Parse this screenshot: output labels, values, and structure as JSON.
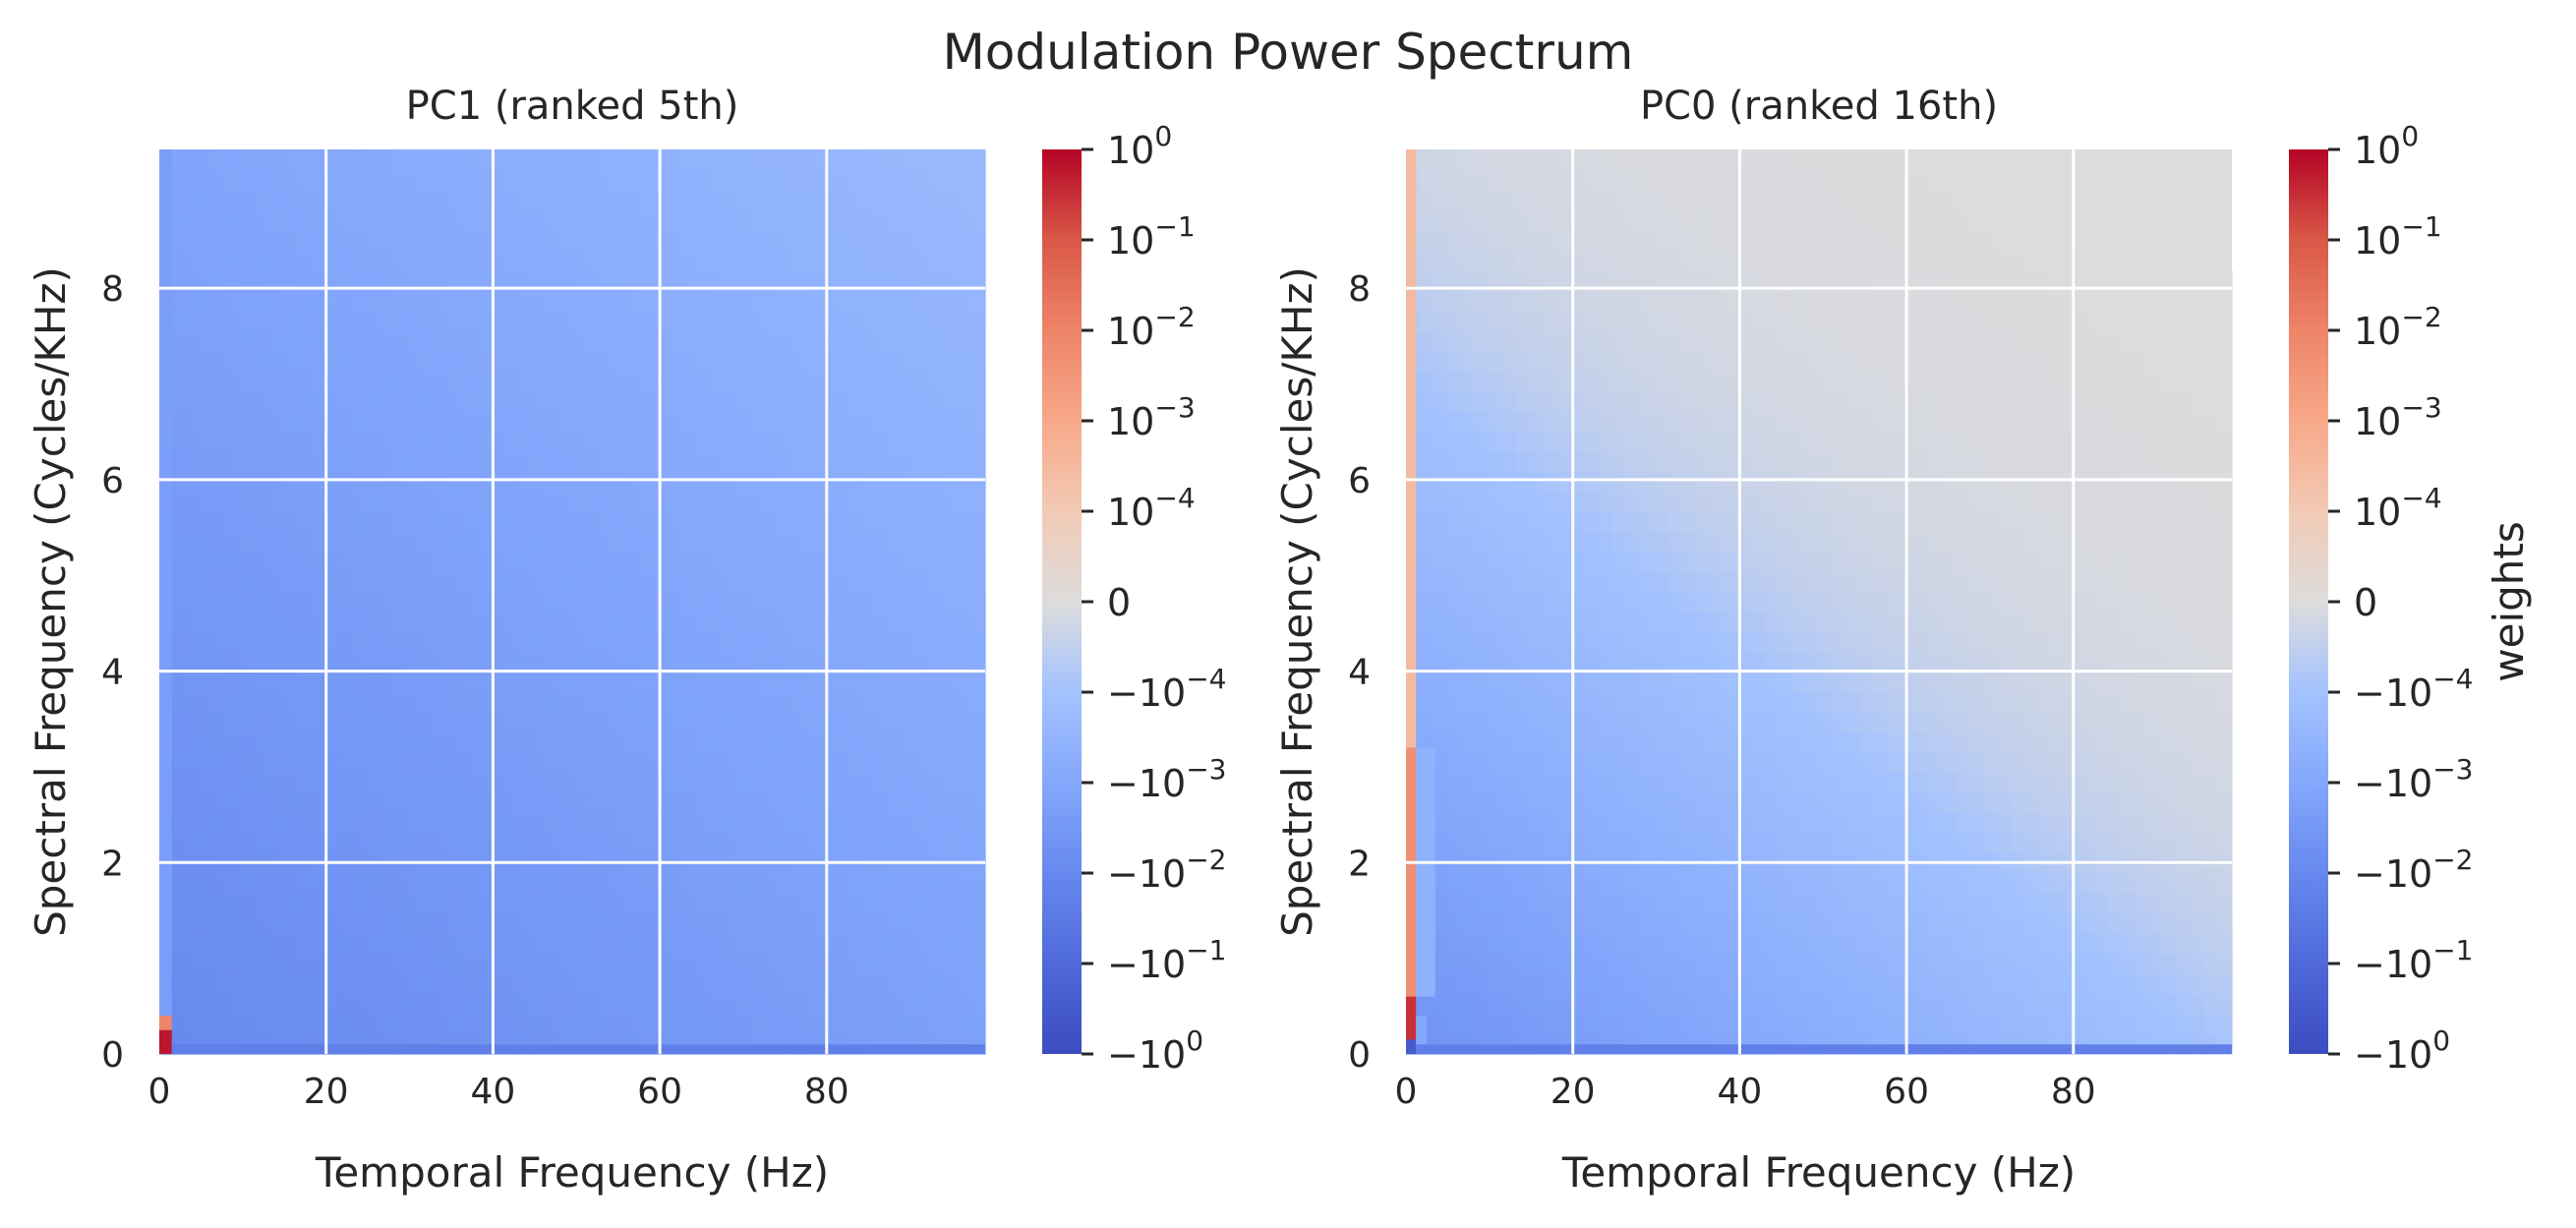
{
  "chart_data": {
    "suptitle": "Modulation Power Spectrum",
    "panels": [
      {
        "type": "heatmap",
        "title": "PC1 (ranked 5th)",
        "xlabel": "Temporal Frequency (Hz)",
        "ylabel": "Spectral Frequency (Cycles/KHz)",
        "xlim": [
          0,
          99
        ],
        "ylim": [
          0,
          9.45
        ],
        "xticks": [
          0,
          20,
          40,
          60,
          80
        ],
        "yticks": [
          0,
          2,
          4,
          6,
          8
        ],
        "grid": true,
        "cells": [
          {
            "x": [
              0,
              1.5
            ],
            "y": [
              0,
              0.25
            ],
            "value": 0.6
          },
          {
            "x": [
              0,
              1.5
            ],
            "y": [
              0.25,
              0.4
            ],
            "value": 0.01
          },
          {
            "x": [
              1.5,
              99
            ],
            "y": [
              0,
              0.1
            ],
            "value": -0.02
          },
          {
            "x": [
              0,
              1.5
            ],
            "y": [
              0.4,
              9.45
            ],
            "value": -0.002
          }
        ],
        "field": {
          "peak_value": -0.01,
          "decay_temporal_hz": 55,
          "decay_spectral_cyc_per_khz": 4.5
        }
      },
      {
        "type": "heatmap",
        "title": "PC0 (ranked 16th)",
        "xlabel": "Temporal Frequency (Hz)",
        "ylabel": "Spectral Frequency (Cycles/KHz)",
        "xlim": [
          0,
          99
        ],
        "ylim": [
          0,
          9.45
        ],
        "xticks": [
          0,
          20,
          40,
          60,
          80
        ],
        "yticks": [
          0,
          2,
          4,
          6,
          8
        ],
        "grid": true,
        "cells": [
          {
            "x": [
              0,
              1.2
            ],
            "y": [
              0,
              0.15
            ],
            "value": -0.3
          },
          {
            "x": [
              0,
              1.2
            ],
            "y": [
              0.15,
              0.6
            ],
            "value": 0.3
          },
          {
            "x": [
              1.2,
              2.5
            ],
            "y": [
              0.1,
              0.4
            ],
            "value": -0.001
          },
          {
            "x": [
              1.2,
              99
            ],
            "y": [
              0,
              0.1
            ],
            "value": -0.02
          },
          {
            "x": [
              0,
              1.2
            ],
            "y": [
              0.6,
              3.2
            ],
            "value": 0.005
          },
          {
            "x": [
              0,
              1.2
            ],
            "y": [
              3.2,
              9.45
            ],
            "value": 0.0003
          },
          {
            "x": [
              1.2,
              3.5
            ],
            "y": [
              0.6,
              3.2
            ],
            "value": -0.0004
          }
        ],
        "field": {
          "peak_value": -0.005,
          "decay_temporal_hz": 25,
          "decay_spectral_cyc_per_khz": 1.8
        }
      }
    ],
    "colorbar": {
      "label": "weights",
      "scale": "symlog",
      "range": [
        -1,
        1
      ],
      "colormap": "coolwarm",
      "tick_values": [
        1,
        0.1,
        0.01,
        0.001,
        0.0001,
        0,
        -0.0001,
        -0.001,
        -0.01,
        -0.1,
        -1
      ],
      "tick_labels": [
        {
          "base": "10",
          "exp": "0"
        },
        {
          "base": "10",
          "exp": "−1"
        },
        {
          "base": "10",
          "exp": "−2"
        },
        {
          "base": "10",
          "exp": "−3"
        },
        {
          "base": "10",
          "exp": "−4"
        },
        {
          "base": "0",
          "exp": ""
        },
        {
          "base": "−10",
          "exp": "−4"
        },
        {
          "base": "−10",
          "exp": "−3"
        },
        {
          "base": "−10",
          "exp": "−2"
        },
        {
          "base": "−10",
          "exp": "−1"
        },
        {
          "base": "−10",
          "exp": "0"
        }
      ]
    },
    "colors": {
      "neutral": "#dcdcdc",
      "grid": "#ffffff",
      "negative_max": "#3b4cc0",
      "positive_max": "#b40426"
    }
  }
}
